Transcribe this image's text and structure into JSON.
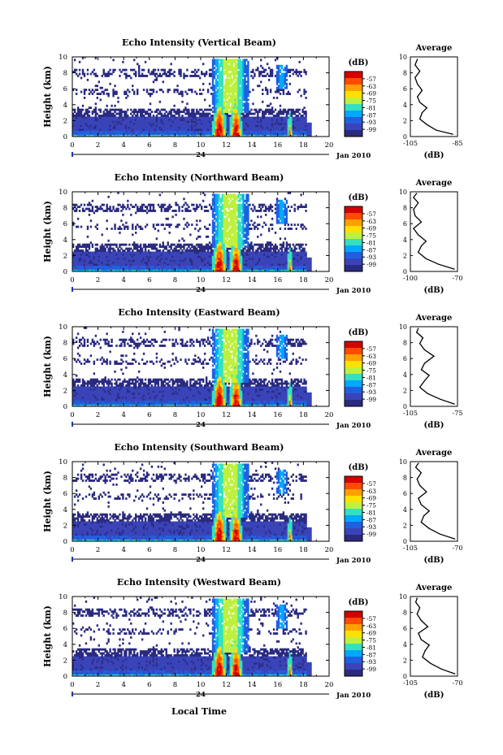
{
  "figure": {
    "date_label": "Jan 2010",
    "day_label": "24",
    "x_axis_title": "Local Time",
    "y_axis_title": "Height (km)",
    "colorbar_unit": "(dB)",
    "colorbar_ticks": [
      "-57",
      "-63",
      "-69",
      "-75",
      "-81",
      "-87",
      "-93",
      "-99"
    ],
    "colorbar_colors": [
      "#d40000",
      "#ff4a00",
      "#ffa000",
      "#ffe000",
      "#bff03f",
      "#35e0c0",
      "#00a8ff",
      "#2060e0",
      "#3a44b8",
      "#2a2a80"
    ],
    "profile_title": "Average",
    "profile_xlabel": "(dB)"
  },
  "chart_data": [
    {
      "type": "heatmap",
      "title": "Echo Intensity (Vertical Beam)",
      "ylabel": "Height (km)",
      "xlim": [
        0,
        20
      ],
      "ylim": [
        0,
        10
      ],
      "x_ticks": [
        "0",
        "2",
        "4",
        "6",
        "8",
        "10",
        "12",
        "14",
        "16",
        "18",
        "20"
      ],
      "y_ticks": [
        "0",
        "2",
        "4",
        "6",
        "8",
        "10"
      ],
      "profile": {
        "title": "Average",
        "xlabel": "(dB)",
        "xlim": [
          -105,
          -85
        ],
        "x_ticks": [
          "-105",
          "-85"
        ],
        "y_ticks": [
          "0",
          "2",
          "4",
          "6",
          "8",
          "10"
        ],
        "points": [
          [
            -87,
            0.3
          ],
          [
            -94,
            0.8
          ],
          [
            -98,
            1.5
          ],
          [
            -101,
            2.2
          ],
          [
            -100,
            3.0
          ],
          [
            -98,
            3.6
          ],
          [
            -101,
            4.3
          ],
          [
            -102,
            5.0
          ],
          [
            -100,
            5.8
          ],
          [
            -102,
            6.6
          ],
          [
            -103,
            7.4
          ],
          [
            -101,
            8.2
          ],
          [
            -103,
            9.0
          ],
          [
            -102,
            9.7
          ]
        ]
      }
    },
    {
      "type": "heatmap",
      "title": "Echo Intensity (Northward Beam)",
      "ylabel": "Height (km)",
      "xlim": [
        0,
        20
      ],
      "ylim": [
        0,
        10
      ],
      "x_ticks": [
        "0",
        "2",
        "4",
        "6",
        "8",
        "10",
        "12",
        "14",
        "16",
        "18",
        "20"
      ],
      "y_ticks": [
        "0",
        "2",
        "4",
        "6",
        "8",
        "10"
      ],
      "profile": {
        "title": "Average",
        "xlabel": "(dB)",
        "xlim": [
          -100,
          -70
        ],
        "x_ticks": [
          "-100",
          "-70"
        ],
        "y_ticks": [
          "0",
          "2",
          "4",
          "6",
          "8",
          "10"
        ],
        "points": [
          [
            -72,
            0.3
          ],
          [
            -82,
            0.9
          ],
          [
            -90,
            1.6
          ],
          [
            -95,
            2.4
          ],
          [
            -93,
            3.2
          ],
          [
            -90,
            3.8
          ],
          [
            -95,
            4.6
          ],
          [
            -98,
            5.4
          ],
          [
            -93,
            6.2
          ],
          [
            -97,
            7.0
          ],
          [
            -98,
            7.8
          ],
          [
            -95,
            8.6
          ],
          [
            -98,
            9.3
          ],
          [
            -96,
            9.8
          ]
        ]
      }
    },
    {
      "type": "heatmap",
      "title": "Echo Intensity (Eastward Beam)",
      "ylabel": "Height (km)",
      "xlim": [
        0,
        20
      ],
      "ylim": [
        0,
        10
      ],
      "x_ticks": [
        "0",
        "2",
        "4",
        "6",
        "8",
        "10",
        "12",
        "14",
        "16",
        "18",
        "20"
      ],
      "y_ticks": [
        "0",
        "2",
        "4",
        "6",
        "8",
        "10"
      ],
      "profile": {
        "title": "Average",
        "xlabel": "(dB)",
        "xlim": [
          -105,
          -75
        ],
        "x_ticks": [
          "-105",
          "-75"
        ],
        "y_ticks": [
          "0",
          "2",
          "4",
          "6",
          "8",
          "10"
        ],
        "points": [
          [
            -77,
            0.3
          ],
          [
            -86,
            0.9
          ],
          [
            -94,
            1.6
          ],
          [
            -99,
            2.4
          ],
          [
            -96,
            3.2
          ],
          [
            -93,
            3.9
          ],
          [
            -98,
            4.6
          ],
          [
            -96,
            5.4
          ],
          [
            -90,
            6.3
          ],
          [
            -96,
            7.1
          ],
          [
            -99,
            7.9
          ],
          [
            -97,
            8.6
          ],
          [
            -101,
            9.3
          ],
          [
            -100,
            9.8
          ]
        ]
      }
    },
    {
      "type": "heatmap",
      "title": "Echo Intensity (Southward Beam)",
      "ylabel": "Height (km)",
      "xlim": [
        0,
        20
      ],
      "ylim": [
        0,
        10
      ],
      "x_ticks": [
        "0",
        "2",
        "4",
        "6",
        "8",
        "10",
        "12",
        "14",
        "16",
        "18",
        "20"
      ],
      "y_ticks": [
        "0",
        "2",
        "4",
        "6",
        "8",
        "10"
      ],
      "profile": {
        "title": "Average",
        "xlabel": "(dB)",
        "xlim": [
          -105,
          -70
        ],
        "x_ticks": [
          "-105",
          "-70"
        ],
        "y_ticks": [
          "0",
          "2",
          "4",
          "6",
          "8",
          "10"
        ],
        "points": [
          [
            -72,
            0.3
          ],
          [
            -83,
            0.9
          ],
          [
            -91,
            1.6
          ],
          [
            -97,
            2.4
          ],
          [
            -95,
            3.2
          ],
          [
            -91,
            3.8
          ],
          [
            -97,
            4.6
          ],
          [
            -99,
            5.4
          ],
          [
            -93,
            6.2
          ],
          [
            -98,
            7.0
          ],
          [
            -100,
            7.8
          ],
          [
            -97,
            8.6
          ],
          [
            -101,
            9.3
          ],
          [
            -99,
            9.8
          ]
        ]
      }
    },
    {
      "type": "heatmap",
      "title": "Echo Intensity (Westward Beam)",
      "ylabel": "Height (km)",
      "xlim": [
        0,
        20
      ],
      "ylim": [
        0,
        10
      ],
      "x_ticks": [
        "0",
        "2",
        "4",
        "6",
        "8",
        "10",
        "12",
        "14",
        "16",
        "18",
        "20"
      ],
      "y_ticks": [
        "0",
        "2",
        "4",
        "6",
        "8",
        "10"
      ],
      "profile": {
        "title": "Average",
        "xlabel": "(dB)",
        "xlim": [
          -105,
          -70
        ],
        "x_ticks": [
          "-105",
          "-70"
        ],
        "y_ticks": [
          "0",
          "2",
          "4",
          "6",
          "8",
          "10"
        ],
        "points": [
          [
            -72,
            0.3
          ],
          [
            -82,
            0.9
          ],
          [
            -90,
            1.6
          ],
          [
            -96,
            2.4
          ],
          [
            -94,
            3.2
          ],
          [
            -91,
            3.9
          ],
          [
            -97,
            4.6
          ],
          [
            -99,
            5.4
          ],
          [
            -92,
            6.2
          ],
          [
            -97,
            7.0
          ],
          [
            -100,
            7.8
          ],
          [
            -98,
            8.6
          ],
          [
            -101,
            9.3
          ],
          [
            -100,
            9.8
          ]
        ]
      }
    }
  ]
}
